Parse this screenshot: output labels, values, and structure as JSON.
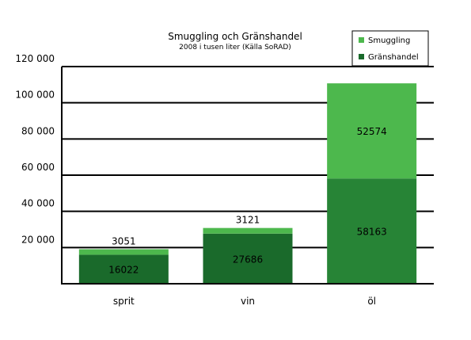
{
  "chart_data": {
    "type": "bar",
    "stacked": true,
    "title": "Smuggling och Gränshandel",
    "subtitle": "2008 i tusen liter (Källa SoRAD)",
    "xlabel": "",
    "ylabel": "",
    "categories": [
      "sprit",
      "vin",
      "öl"
    ],
    "series": [
      {
        "name": "Gränshandel",
        "values": [
          16022,
          27686,
          58163
        ],
        "colors": [
          "#1a6a2b",
          "#1a6a2b",
          "#278436"
        ]
      },
      {
        "name": "Smuggling",
        "values": [
          3051,
          3121,
          52574
        ],
        "color": "#4db84d"
      }
    ],
    "ylim": [
      0,
      120000
    ],
    "yticks": [
      20000,
      40000,
      60000,
      80000,
      100000,
      120000
    ],
    "ytick_labels": [
      "20 000",
      "40 000",
      "60 000",
      "80 000",
      "100 000",
      "120 000"
    ],
    "grid": true,
    "legend": {
      "placement": "top-right",
      "items": [
        {
          "name": "Smuggling",
          "color": "#4db84d"
        },
        {
          "name": "Gränshandel",
          "color": "#1a6a2b"
        }
      ]
    }
  }
}
